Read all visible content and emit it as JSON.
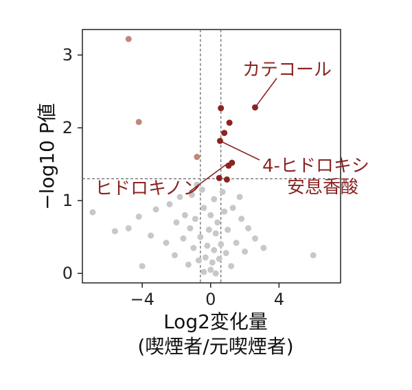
{
  "chart_data": {
    "type": "scatter",
    "title": "",
    "xlabel": "Log2変化量",
    "xlabel_line2": "(喫煙者/元喫煙者)",
    "ylabel": "−log10 P値",
    "xlim": [
      -7.5,
      7.6
    ],
    "ylim": [
      -0.13,
      3.35
    ],
    "x_ticks": [
      -4,
      0,
      4
    ],
    "x_tick_labels": [
      "−4",
      "0",
      "4"
    ],
    "y_ticks": [
      0,
      1,
      2,
      3
    ],
    "y_tick_labels": [
      "0",
      "1",
      "2",
      "3"
    ],
    "thresholds": {
      "x": [
        -0.6,
        0.6
      ],
      "y": 1.3
    },
    "grid": false,
    "colors": {
      "non_significant": "#c8c8c8",
      "significant_up": "#8b2323",
      "significant_down": "#c4867c",
      "threshold_line": "#666666",
      "annotation_text": "#8b2323"
    },
    "annotations": [
      {
        "text": "カテコール",
        "x": 2.6,
        "y": 2.28
      },
      {
        "text": "4-ヒドロキシ",
        "text2": "安息香酸",
        "x": 0.55,
        "y": 1.82
      },
      {
        "text": "ヒドロキノン",
        "x": 1.05,
        "y": 1.52
      }
    ],
    "series": [
      {
        "values": [
          {
            "x": 0.6,
            "y": 2.27
          },
          {
            "x": 2.6,
            "y": 2.28
          },
          {
            "x": 1.1,
            "y": 2.07
          },
          {
            "x": 0.8,
            "y": 1.93
          },
          {
            "x": 0.55,
            "y": 1.82
          },
          {
            "x": 1.25,
            "y": 1.52
          },
          {
            "x": 1.05,
            "y": 1.48
          },
          {
            "x": 0.5,
            "y": 1.31
          },
          {
            "x": 0.95,
            "y": 1.29
          }
        ]
      },
      {
        "values": [
          {
            "x": -4.8,
            "y": 3.22
          },
          {
            "x": -4.2,
            "y": 2.08
          },
          {
            "x": -0.8,
            "y": 1.6
          }
        ]
      },
      {
        "values": [
          {
            "x": -6.9,
            "y": 0.84
          },
          {
            "x": -5.6,
            "y": 0.58
          },
          {
            "x": -4.8,
            "y": 0.62
          },
          {
            "x": -4.2,
            "y": 0.78
          },
          {
            "x": -3.2,
            "y": 0.88
          },
          {
            "x": -3.5,
            "y": 0.52
          },
          {
            "x": -4.0,
            "y": 0.1
          },
          {
            "x": -2.4,
            "y": 0.95
          },
          {
            "x": -1.8,
            "y": 1.05
          },
          {
            "x": -1.1,
            "y": 1.08
          },
          {
            "x": -0.5,
            "y": 1.15
          },
          {
            "x": 0.2,
            "y": 1.02
          },
          {
            "x": -2.0,
            "y": 0.7
          },
          {
            "x": -1.5,
            "y": 0.8
          },
          {
            "x": -2.6,
            "y": 0.42
          },
          {
            "x": -1.2,
            "y": 0.62
          },
          {
            "x": -0.9,
            "y": 0.75
          },
          {
            "x": -0.4,
            "y": 0.9
          },
          {
            "x": 0.0,
            "y": 0.8
          },
          {
            "x": 0.4,
            "y": 0.7
          },
          {
            "x": 0.8,
            "y": 0.85
          },
          {
            "x": 1.3,
            "y": 0.9
          },
          {
            "x": 1.8,
            "y": 0.75
          },
          {
            "x": 2.2,
            "y": 0.62
          },
          {
            "x": 2.6,
            "y": 0.48
          },
          {
            "x": 3.1,
            "y": 0.35
          },
          {
            "x": 6.0,
            "y": 0.25
          },
          {
            "x": -1.6,
            "y": 0.48
          },
          {
            "x": -0.6,
            "y": 0.5
          },
          {
            "x": 0.3,
            "y": 0.55
          },
          {
            "x": 1.0,
            "y": 0.6
          },
          {
            "x": -0.2,
            "y": 0.38
          },
          {
            "x": 0.6,
            "y": 0.4
          },
          {
            "x": -1.0,
            "y": 0.35
          },
          {
            "x": 1.5,
            "y": 0.42
          },
          {
            "x": -0.3,
            "y": 0.22
          },
          {
            "x": 0.1,
            "y": 0.15
          },
          {
            "x": 0.5,
            "y": 0.2
          },
          {
            "x": -0.7,
            "y": 0.18
          },
          {
            "x": 0.9,
            "y": 0.28
          },
          {
            "x": 0.0,
            "y": 0.05
          },
          {
            "x": -0.4,
            "y": 0.02
          },
          {
            "x": 0.3,
            "y": 0.0
          },
          {
            "x": 1.2,
            "y": 0.1
          },
          {
            "x": -1.3,
            "y": 0.12
          },
          {
            "x": 2.0,
            "y": 0.3
          },
          {
            "x": -2.1,
            "y": 0.25
          },
          {
            "x": 0.2,
            "y": 0.32
          },
          {
            "x": -0.1,
            "y": 0.6
          },
          {
            "x": 0.7,
            "y": 1.12
          },
          {
            "x": -0.8,
            "y": 1.22
          },
          {
            "x": 1.7,
            "y": 1.05
          }
        ]
      }
    ]
  }
}
